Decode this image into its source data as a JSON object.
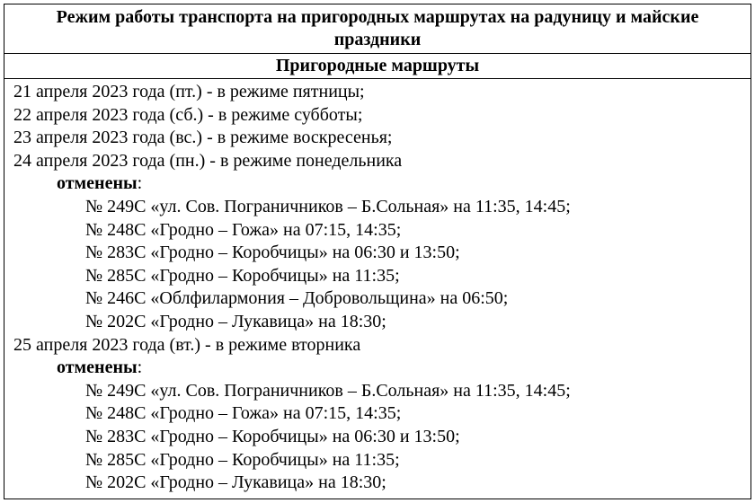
{
  "title_line1": "Режим работы транспорта на пригородных маршрутах на радуницу и майские",
  "title_line2": "праздники",
  "subtitle": "Пригородные маршруты",
  "days": [
    {
      "date_line": "21 апреля 2023 года (пт.) - в режиме пятницы;",
      "cancel": null,
      "routes": []
    },
    {
      "date_line": "22 апреля 2023 года (сб.) - в режиме субботы;",
      "cancel": null,
      "routes": []
    },
    {
      "date_line": "23 апреля 2023 года (вс.) - в режиме воскресенья;",
      "cancel": null,
      "routes": []
    },
    {
      "date_line": "24 апреля 2023 года (пн.) - в режиме понедельника",
      "cancel": "отменены",
      "routes": [
        "№ 249С «ул. Сов. Пограничников – Б.Сольная» на 11:35, 14:45;",
        "№ 248С «Гродно – Гожа» на 07:15, 14:35;",
        "№ 283С «Гродно – Коробчицы» на 06:30 и 13:50;",
        "№ 285С «Гродно – Коробчицы» на 11:35;",
        "№ 246С «Облфилармония – Добровольщина» на 06:50;",
        "№ 202С «Гродно – Лукавица» на 18:30;"
      ]
    },
    {
      "date_line": "25 апреля 2023 года (вт.) - в режиме вторника",
      "cancel": "отменены",
      "routes": [
        "№ 249С «ул. Сов. Пограничников – Б.Сольная» на 11:35, 14:45;",
        "№ 248С «Гродно – Гожа» на 07:15, 14:35;",
        "№ 283С «Гродно – Коробчицы» на 06:30 и 13:50;",
        "№ 285С «Гродно – Коробчицы» на 11:35;",
        "№ 202С «Гродно – Лукавица» на 18:30;"
      ]
    }
  ]
}
